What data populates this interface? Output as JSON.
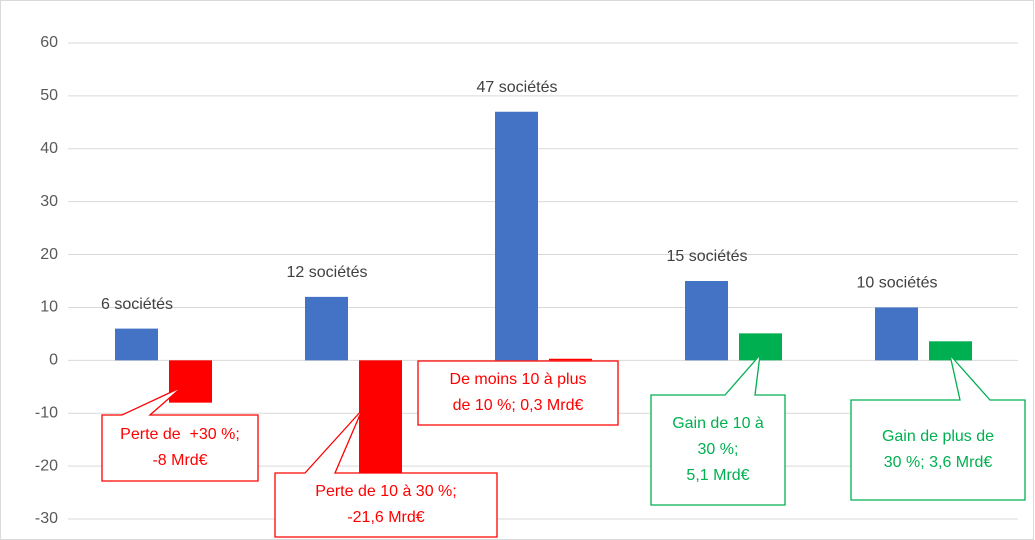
{
  "chart_data": {
    "type": "bar",
    "categories": [
      null,
      null,
      null,
      null,
      null
    ],
    "series": [
      {
        "color": "#4472c4",
        "values": [
          6,
          12,
          47,
          15,
          10
        ],
        "value_labels": [
          "6 sociétés",
          "12 sociétés",
          "47 sociétés",
          "15 sociétés",
          "10 sociétés"
        ]
      },
      {
        "colors": [
          "#ff0000",
          "#ff0000",
          "#ff0000",
          "#00b050",
          "#00b050"
        ],
        "values": [
          -8,
          -21.6,
          0.3,
          5.1,
          3.6
        ],
        "value_labels": [
          [
            "Perte de  +30 %;",
            "-8 Mrd€"
          ],
          [
            "Perte de 10 à 30 %;",
            "-21,6 Mrd€"
          ],
          [
            "De moins 10 à plus",
            "de 10 %; 0,3 Mrd€"
          ],
          [
            "Gain de 10 à",
            "30 %;",
            "5,1 Mrd€"
          ],
          [
            "Gain de plus de",
            "30 %; 3,6 Mrd€"
          ]
        ]
      }
    ],
    "ylim": [
      -30,
      60
    ],
    "yticks": [
      -30,
      -20,
      -10,
      0,
      10,
      20,
      30,
      40,
      50,
      60
    ],
    "grid": true
  }
}
